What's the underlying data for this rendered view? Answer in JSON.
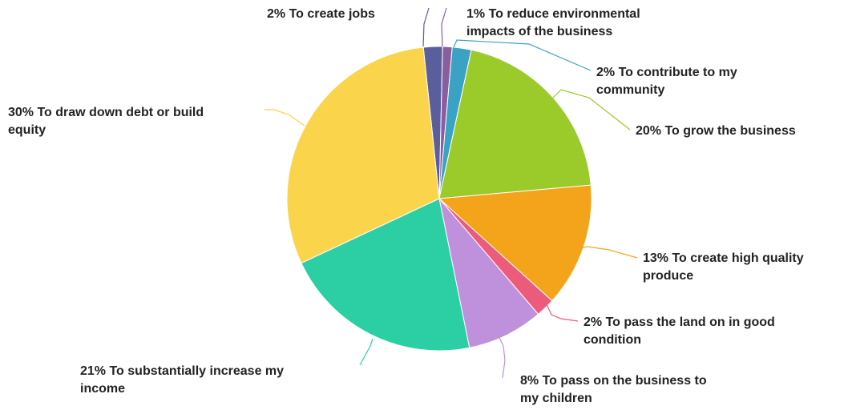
{
  "chart_data": {
    "type": "pie",
    "title": "",
    "start_angle_deg": -6,
    "direction": "clockwise",
    "slices": [
      {
        "label": "2% To create jobs",
        "value": 2,
        "color": "#5b5e9c"
      },
      {
        "label": "1% To reduce environmental impacts of the business",
        "value": 1,
        "color": "#8a5d9e"
      },
      {
        "label": "2% To contribute to my community",
        "value": 2,
        "color": "#3aa3c4"
      },
      {
        "label": "20% To grow the business",
        "value": 20,
        "color": "#9acb2a"
      },
      {
        "label": "13% To create high quality produce",
        "value": 13,
        "color": "#f4a41b"
      },
      {
        "label": "2% To pass the land on in good condition",
        "value": 2,
        "color": "#ec5b7c"
      },
      {
        "label": "8% To pass on the business to my children",
        "value": 8,
        "color": "#bf91dc"
      },
      {
        "label": "21% To substantially increase my income",
        "value": 21,
        "color": "#2ccfa4"
      },
      {
        "label": "30% To draw down debt or build equity",
        "value": 30,
        "color": "#fad44b"
      }
    ]
  }
}
